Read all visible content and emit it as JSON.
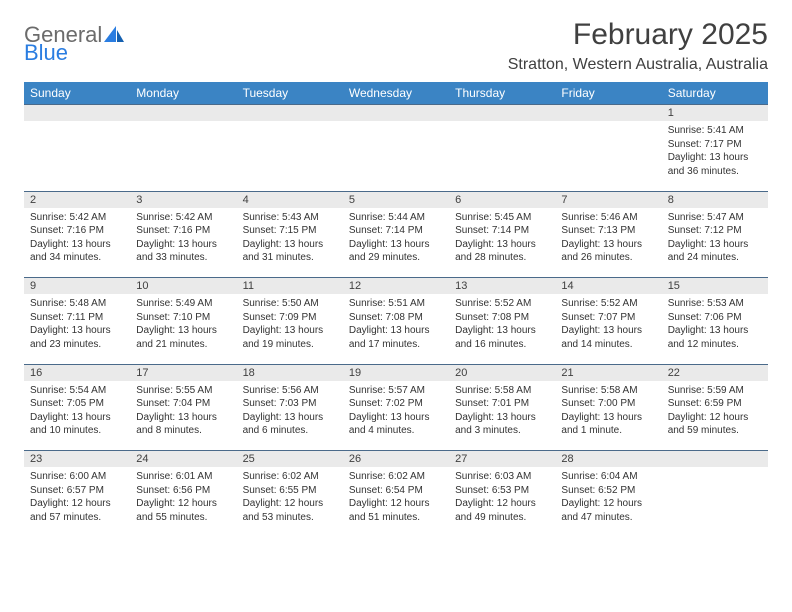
{
  "header": {
    "logo_gray": "General",
    "logo_blue": "Blue",
    "month_title": "February 2025",
    "location": "Stratton, Western Australia, Australia"
  },
  "colors": {
    "header_bg": "#3b84c4",
    "header_text": "#ffffff",
    "daynum_bg": "#eaeaea",
    "row_border": "#4a6a8a",
    "logo_gray": "#6b6b6b",
    "logo_blue": "#2a7de1",
    "body_text": "#333333"
  },
  "weekdays": [
    "Sunday",
    "Monday",
    "Tuesday",
    "Wednesday",
    "Thursday",
    "Friday",
    "Saturday"
  ],
  "weeks": [
    [
      null,
      null,
      null,
      null,
      null,
      null,
      {
        "n": "1",
        "sr": "Sunrise: 5:41 AM",
        "ss": "Sunset: 7:17 PM",
        "d1": "Daylight: 13 hours",
        "d2": "and 36 minutes."
      }
    ],
    [
      {
        "n": "2",
        "sr": "Sunrise: 5:42 AM",
        "ss": "Sunset: 7:16 PM",
        "d1": "Daylight: 13 hours",
        "d2": "and 34 minutes."
      },
      {
        "n": "3",
        "sr": "Sunrise: 5:42 AM",
        "ss": "Sunset: 7:16 PM",
        "d1": "Daylight: 13 hours",
        "d2": "and 33 minutes."
      },
      {
        "n": "4",
        "sr": "Sunrise: 5:43 AM",
        "ss": "Sunset: 7:15 PM",
        "d1": "Daylight: 13 hours",
        "d2": "and 31 minutes."
      },
      {
        "n": "5",
        "sr": "Sunrise: 5:44 AM",
        "ss": "Sunset: 7:14 PM",
        "d1": "Daylight: 13 hours",
        "d2": "and 29 minutes."
      },
      {
        "n": "6",
        "sr": "Sunrise: 5:45 AM",
        "ss": "Sunset: 7:14 PM",
        "d1": "Daylight: 13 hours",
        "d2": "and 28 minutes."
      },
      {
        "n": "7",
        "sr": "Sunrise: 5:46 AM",
        "ss": "Sunset: 7:13 PM",
        "d1": "Daylight: 13 hours",
        "d2": "and 26 minutes."
      },
      {
        "n": "8",
        "sr": "Sunrise: 5:47 AM",
        "ss": "Sunset: 7:12 PM",
        "d1": "Daylight: 13 hours",
        "d2": "and 24 minutes."
      }
    ],
    [
      {
        "n": "9",
        "sr": "Sunrise: 5:48 AM",
        "ss": "Sunset: 7:11 PM",
        "d1": "Daylight: 13 hours",
        "d2": "and 23 minutes."
      },
      {
        "n": "10",
        "sr": "Sunrise: 5:49 AM",
        "ss": "Sunset: 7:10 PM",
        "d1": "Daylight: 13 hours",
        "d2": "and 21 minutes."
      },
      {
        "n": "11",
        "sr": "Sunrise: 5:50 AM",
        "ss": "Sunset: 7:09 PM",
        "d1": "Daylight: 13 hours",
        "d2": "and 19 minutes."
      },
      {
        "n": "12",
        "sr": "Sunrise: 5:51 AM",
        "ss": "Sunset: 7:08 PM",
        "d1": "Daylight: 13 hours",
        "d2": "and 17 minutes."
      },
      {
        "n": "13",
        "sr": "Sunrise: 5:52 AM",
        "ss": "Sunset: 7:08 PM",
        "d1": "Daylight: 13 hours",
        "d2": "and 16 minutes."
      },
      {
        "n": "14",
        "sr": "Sunrise: 5:52 AM",
        "ss": "Sunset: 7:07 PM",
        "d1": "Daylight: 13 hours",
        "d2": "and 14 minutes."
      },
      {
        "n": "15",
        "sr": "Sunrise: 5:53 AM",
        "ss": "Sunset: 7:06 PM",
        "d1": "Daylight: 13 hours",
        "d2": "and 12 minutes."
      }
    ],
    [
      {
        "n": "16",
        "sr": "Sunrise: 5:54 AM",
        "ss": "Sunset: 7:05 PM",
        "d1": "Daylight: 13 hours",
        "d2": "and 10 minutes."
      },
      {
        "n": "17",
        "sr": "Sunrise: 5:55 AM",
        "ss": "Sunset: 7:04 PM",
        "d1": "Daylight: 13 hours",
        "d2": "and 8 minutes."
      },
      {
        "n": "18",
        "sr": "Sunrise: 5:56 AM",
        "ss": "Sunset: 7:03 PM",
        "d1": "Daylight: 13 hours",
        "d2": "and 6 minutes."
      },
      {
        "n": "19",
        "sr": "Sunrise: 5:57 AM",
        "ss": "Sunset: 7:02 PM",
        "d1": "Daylight: 13 hours",
        "d2": "and 4 minutes."
      },
      {
        "n": "20",
        "sr": "Sunrise: 5:58 AM",
        "ss": "Sunset: 7:01 PM",
        "d1": "Daylight: 13 hours",
        "d2": "and 3 minutes."
      },
      {
        "n": "21",
        "sr": "Sunrise: 5:58 AM",
        "ss": "Sunset: 7:00 PM",
        "d1": "Daylight: 13 hours",
        "d2": "and 1 minute."
      },
      {
        "n": "22",
        "sr": "Sunrise: 5:59 AM",
        "ss": "Sunset: 6:59 PM",
        "d1": "Daylight: 12 hours",
        "d2": "and 59 minutes."
      }
    ],
    [
      {
        "n": "23",
        "sr": "Sunrise: 6:00 AM",
        "ss": "Sunset: 6:57 PM",
        "d1": "Daylight: 12 hours",
        "d2": "and 57 minutes."
      },
      {
        "n": "24",
        "sr": "Sunrise: 6:01 AM",
        "ss": "Sunset: 6:56 PM",
        "d1": "Daylight: 12 hours",
        "d2": "and 55 minutes."
      },
      {
        "n": "25",
        "sr": "Sunrise: 6:02 AM",
        "ss": "Sunset: 6:55 PM",
        "d1": "Daylight: 12 hours",
        "d2": "and 53 minutes."
      },
      {
        "n": "26",
        "sr": "Sunrise: 6:02 AM",
        "ss": "Sunset: 6:54 PM",
        "d1": "Daylight: 12 hours",
        "d2": "and 51 minutes."
      },
      {
        "n": "27",
        "sr": "Sunrise: 6:03 AM",
        "ss": "Sunset: 6:53 PM",
        "d1": "Daylight: 12 hours",
        "d2": "and 49 minutes."
      },
      {
        "n": "28",
        "sr": "Sunrise: 6:04 AM",
        "ss": "Sunset: 6:52 PM",
        "d1": "Daylight: 12 hours",
        "d2": "and 47 minutes."
      },
      null
    ]
  ]
}
